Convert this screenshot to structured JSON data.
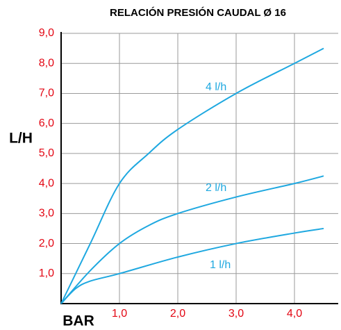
{
  "chart_data": {
    "type": "line",
    "title": "RELACIÓN PRESIÓN CAUDAL Ø 16",
    "y_label": "L/H",
    "x_label": "BAR",
    "xlim": [
      0,
      4.75
    ],
    "ylim": [
      0,
      9
    ],
    "xticks": [
      {
        "value": 1,
        "label": "1,0"
      },
      {
        "value": 2,
        "label": "2,0"
      },
      {
        "value": 3,
        "label": "3,0"
      },
      {
        "value": 4,
        "label": "4,0"
      }
    ],
    "yticks": [
      {
        "value": 1,
        "label": "1,0"
      },
      {
        "value": 2,
        "label": "2,0"
      },
      {
        "value": 3,
        "label": "3,0"
      },
      {
        "value": 4,
        "label": "4,0"
      },
      {
        "value": 5,
        "label": "5,0"
      },
      {
        "value": 6,
        "label": "6,0"
      },
      {
        "value": 7,
        "label": "7,0"
      },
      {
        "value": 8,
        "label": "8,0"
      },
      {
        "value": 9,
        "label": "9,0"
      }
    ],
    "grid": true,
    "series": [
      {
        "name": "4 l/h",
        "color": "#1ea8e0",
        "x": [
          0,
          0.5,
          1,
          1.5,
          2,
          3,
          4,
          4.5
        ],
        "values": [
          0,
          2.0,
          4.0,
          5.0,
          5.8,
          7.0,
          8.0,
          8.5
        ]
      },
      {
        "name": "2 l/h",
        "color": "#1ea8e0",
        "x": [
          0,
          0.5,
          1,
          1.5,
          2,
          3,
          4,
          4.5
        ],
        "values": [
          0,
          1.1,
          2.0,
          2.6,
          3.0,
          3.55,
          4.0,
          4.25
        ]
      },
      {
        "name": "1 l/h",
        "color": "#1ea8e0",
        "x": [
          0,
          0.25,
          0.5,
          1,
          2,
          3,
          4,
          4.5
        ],
        "values": [
          0,
          0.5,
          0.75,
          1.0,
          1.55,
          2.0,
          2.35,
          2.5
        ]
      }
    ]
  }
}
